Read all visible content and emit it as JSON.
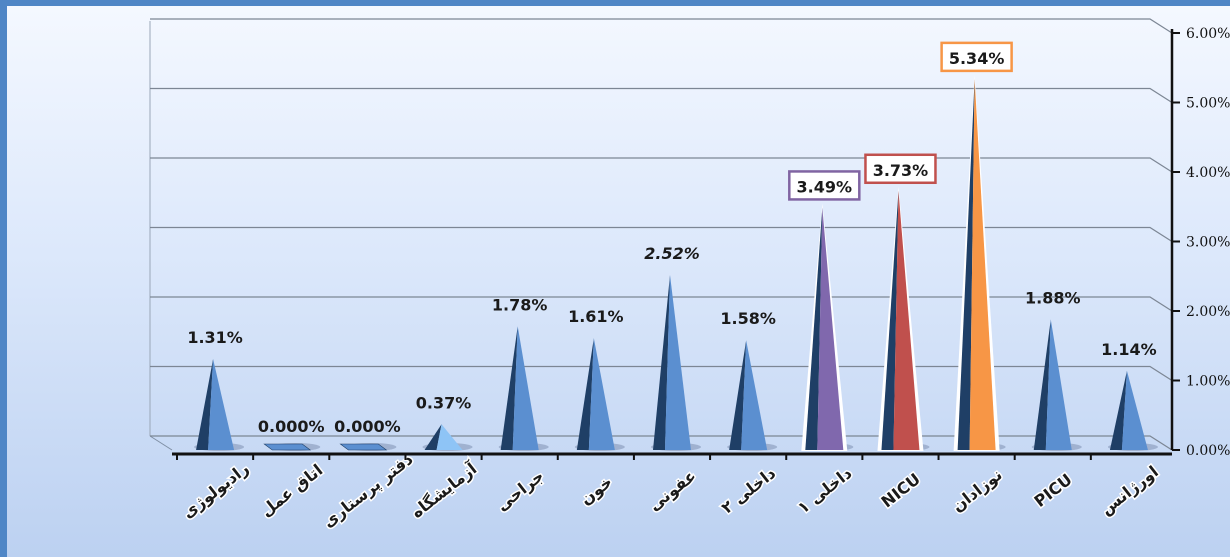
{
  "chart_data": {
    "type": "bar",
    "categories": [
      "رادیولوژی",
      "اتاق عمل",
      "دفتر پرستاری",
      "آزمایشگاه",
      "جراحی",
      "خون",
      "عفونی",
      "داخلی ۲",
      "داخلی ۱",
      "NICU",
      "نوزادان",
      "PICU",
      "اورژانس"
    ],
    "values": [
      1.31,
      0.0,
      0.0,
      0.37,
      1.78,
      1.61,
      2.52,
      1.58,
      3.49,
      3.73,
      5.34,
      1.88,
      1.14
    ],
    "data_labels": [
      "1.31%",
      "0.000%",
      "0.000%",
      "0.37%",
      "1.78%",
      "1.61%",
      "2.52%",
      "1.58%",
      "3.49%",
      "3.73%",
      "5.34%",
      "1.88%",
      "1.14%"
    ],
    "yticks": [
      "0.00%",
      "1.00%",
      "2.00%",
      "3.00%",
      "4.00%",
      "5.00%",
      "6.00%"
    ],
    "ylim": [
      0,
      6
    ],
    "grid": true,
    "colors": {
      "default": "#5b8fd0",
      "default_dark": "#1f3f66",
      "lab": "#8ec4f6",
      "internal1": "#8068ad",
      "nicu": "#c0504d",
      "neonatal": "#f79646",
      "box_internal1": "#8064a2",
      "box_nicu": "#c0504d",
      "box_neonatal": "#f79646"
    },
    "highlighted": [
      "داخلی ۱",
      "NICU",
      "نوزادان"
    ]
  }
}
